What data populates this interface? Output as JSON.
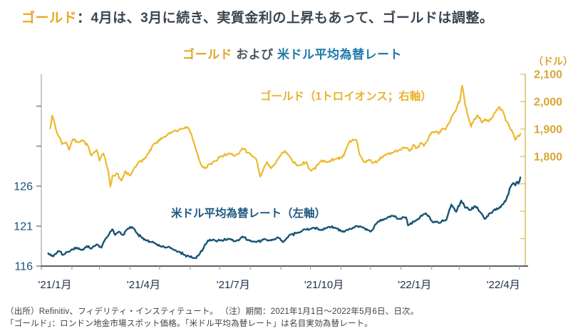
{
  "page": {
    "header": {
      "highlight": "ゴールド",
      "rest": "：4月は、3月に続き、実質金利の上昇もあって、ゴールドは調整。"
    },
    "footer_line1": "（出所）Refinitiv、フィデリティ・インスティテュート。 （注）期間：2021年1月1日～2022年5月6日、日次。",
    "footer_line2": "「ゴールド」：ロンドン地金市場スポット価格。「米ドル平均為替レート」は名目実効為替レート。"
  },
  "chart_data": {
    "type": "line",
    "title_parts": {
      "gold": "ゴールド",
      "middle": " および ",
      "blue": "米ドル平均為替レート"
    },
    "right_axis": {
      "unit": "（ドル）",
      "labeled_ticks": [
        2100,
        2000,
        1900,
        1800
      ],
      "unlabeled_ticks": [
        1700,
        1600,
        1500
      ],
      "range": [
        1400,
        2100
      ],
      "color": "#d9a733"
    },
    "left_axis": {
      "labeled_ticks": [
        126,
        121,
        116
      ],
      "unlabeled_ticks": [
        131,
        136
      ],
      "range": [
        116,
        140
      ],
      "color": "#1b5173"
    },
    "x_axis": {
      "tick_labels": [
        "'21/1月",
        "'21/4月",
        "'21/7月",
        "'21/10月",
        "'22/1月",
        "'22/4月"
      ],
      "label_month_index": [
        0,
        3,
        6,
        9,
        12,
        15
      ],
      "period_days": 491,
      "label_color": "#1f3048"
    },
    "legend_position": "inside-plot",
    "grid": false,
    "series": [
      {
        "name": "ゴールド（1トロイオンス；右軸）",
        "axis": "right",
        "color": "#edb92f",
        "points": [
          [
            9,
            1902
          ],
          [
            11,
            1949
          ],
          [
            16,
            1885
          ],
          [
            21,
            1845
          ],
          [
            25,
            1852
          ],
          [
            28,
            1824
          ],
          [
            32,
            1863
          ],
          [
            38,
            1852
          ],
          [
            43,
            1858
          ],
          [
            47,
            1840
          ],
          [
            51,
            1803
          ],
          [
            56,
            1824
          ],
          [
            59,
            1785
          ],
          [
            63,
            1811
          ],
          [
            68,
            1746
          ],
          [
            70,
            1690
          ],
          [
            72,
            1727
          ],
          [
            77,
            1738
          ],
          [
            81,
            1712
          ],
          [
            85,
            1746
          ],
          [
            90,
            1730
          ],
          [
            99,
            1780
          ],
          [
            106,
            1795
          ],
          [
            114,
            1845
          ],
          [
            123,
            1868
          ],
          [
            133,
            1890
          ],
          [
            143,
            1902
          ],
          [
            148,
            1907
          ],
          [
            152,
            1884
          ],
          [
            157,
            1824
          ],
          [
            162,
            1770
          ],
          [
            166,
            1756
          ],
          [
            170,
            1770
          ],
          [
            175,
            1782
          ],
          [
            182,
            1800
          ],
          [
            190,
            1810
          ],
          [
            197,
            1803
          ],
          [
            204,
            1830
          ],
          [
            211,
            1812
          ],
          [
            218,
            1790
          ],
          [
            222,
            1726
          ],
          [
            226,
            1760
          ],
          [
            229,
            1780
          ],
          [
            233,
            1756
          ],
          [
            240,
            1790
          ],
          [
            247,
            1820
          ],
          [
            251,
            1806
          ],
          [
            255,
            1780
          ],
          [
            262,
            1768
          ],
          [
            269,
            1780
          ],
          [
            273,
            1750
          ],
          [
            276,
            1755
          ],
          [
            280,
            1768
          ],
          [
            284,
            1785
          ],
          [
            291,
            1780
          ],
          [
            298,
            1790
          ],
          [
            305,
            1795
          ],
          [
            309,
            1825
          ],
          [
            312,
            1852
          ],
          [
            316,
            1862
          ],
          [
            320,
            1857
          ],
          [
            323,
            1806
          ],
          [
            327,
            1780
          ],
          [
            334,
            1787
          ],
          [
            338,
            1778
          ],
          [
            341,
            1782
          ],
          [
            349,
            1806
          ],
          [
            356,
            1812
          ],
          [
            363,
            1824
          ],
          [
            370,
            1832
          ],
          [
            374,
            1820
          ],
          [
            378,
            1843
          ],
          [
            381,
            1830
          ],
          [
            385,
            1850
          ],
          [
            388,
            1838
          ],
          [
            392,
            1858
          ],
          [
            396,
            1888
          ],
          [
            399,
            1890
          ],
          [
            403,
            1882
          ],
          [
            407,
            1902
          ],
          [
            410,
            1898
          ],
          [
            414,
            1923
          ],
          [
            417,
            1949
          ],
          [
            421,
            1972
          ],
          [
            425,
            2008
          ],
          [
            427,
            2058
          ],
          [
            430,
            1988
          ],
          [
            432,
            1959
          ],
          [
            436,
            1908
          ],
          [
            439,
            1936
          ],
          [
            443,
            1949
          ],
          [
            447,
            1923
          ],
          [
            450,
            1936
          ],
          [
            454,
            1928
          ],
          [
            457,
            1941
          ],
          [
            461,
            1962
          ],
          [
            464,
            1980
          ],
          [
            468,
            1967
          ],
          [
            471,
            1933
          ],
          [
            475,
            1907
          ],
          [
            479,
            1881
          ],
          [
            481,
            1860
          ],
          [
            484,
            1876
          ],
          [
            486,
            1883
          ]
        ]
      },
      {
        "name": "米ドル平均為替レート（左軸）",
        "axis": "left",
        "color": "#175475",
        "points": [
          [
            7,
            117.6
          ],
          [
            12,
            117.2
          ],
          [
            17,
            117.9
          ],
          [
            22,
            117.4
          ],
          [
            27,
            117.8
          ],
          [
            32,
            118.1
          ],
          [
            36,
            118.3
          ],
          [
            41,
            118.0
          ],
          [
            46,
            118.5
          ],
          [
            51,
            118.2
          ],
          [
            56,
            118.7
          ],
          [
            61,
            118.3
          ],
          [
            65,
            119.4
          ],
          [
            72,
            120.6
          ],
          [
            75,
            119.9
          ],
          [
            79,
            120.3
          ],
          [
            83,
            119.9
          ],
          [
            87,
            120.6
          ],
          [
            92,
            120.9
          ],
          [
            97,
            120.1
          ],
          [
            101,
            119.7
          ],
          [
            106,
            119.2
          ],
          [
            111,
            119.0
          ],
          [
            116,
            118.8
          ],
          [
            121,
            118.5
          ],
          [
            126,
            118.3
          ],
          [
            130,
            118.4
          ],
          [
            135,
            118.0
          ],
          [
            140,
            117.8
          ],
          [
            145,
            117.4
          ],
          [
            150,
            117.2
          ],
          [
            155,
            117.0
          ],
          [
            159,
            117.3
          ],
          [
            164,
            118.1
          ],
          [
            169,
            119.2
          ],
          [
            174,
            119.3
          ],
          [
            182,
            119.2
          ],
          [
            190,
            119.4
          ],
          [
            197,
            119.1
          ],
          [
            204,
            119.7
          ],
          [
            211,
            119.2
          ],
          [
            218,
            119.0
          ],
          [
            226,
            119.4
          ],
          [
            233,
            119.2
          ],
          [
            240,
            119.6
          ],
          [
            245,
            119.0
          ],
          [
            252,
            119.9
          ],
          [
            260,
            120.2
          ],
          [
            267,
            120.6
          ],
          [
            276,
            120.8
          ],
          [
            284,
            120.5
          ],
          [
            291,
            120.9
          ],
          [
            298,
            120.8
          ],
          [
            305,
            120.3
          ],
          [
            312,
            120.6
          ],
          [
            320,
            121.0
          ],
          [
            327,
            120.8
          ],
          [
            334,
            120.3
          ],
          [
            341,
            121.5
          ],
          [
            349,
            121.9
          ],
          [
            356,
            122.3
          ],
          [
            363,
            121.9
          ],
          [
            370,
            122.1
          ],
          [
            372,
            121.1
          ],
          [
            380,
            121.7
          ],
          [
            390,
            122.6
          ],
          [
            397,
            121.5
          ],
          [
            404,
            121.4
          ],
          [
            411,
            121.8
          ],
          [
            416,
            123.7
          ],
          [
            421,
            122.8
          ],
          [
            426,
            124.2
          ],
          [
            430,
            123.3
          ],
          [
            435,
            123.0
          ],
          [
            440,
            123.5
          ],
          [
            445,
            122.8
          ],
          [
            450,
            121.9
          ],
          [
            455,
            122.6
          ],
          [
            459,
            123.0
          ],
          [
            464,
            123.2
          ],
          [
            469,
            123.8
          ],
          [
            471,
            124.1
          ],
          [
            474,
            125.0
          ],
          [
            476,
            125.9
          ],
          [
            479,
            126.4
          ],
          [
            481,
            126.1
          ],
          [
            482,
            126.5
          ],
          [
            484,
            126.3
          ],
          [
            486,
            127.1
          ]
        ]
      }
    ],
    "axis_line_colors": {
      "left": "#b3b8bc",
      "right": "#d9be5c",
      "bottom": "#2b2b2b",
      "month_ticks": "#9a9fa3"
    }
  }
}
